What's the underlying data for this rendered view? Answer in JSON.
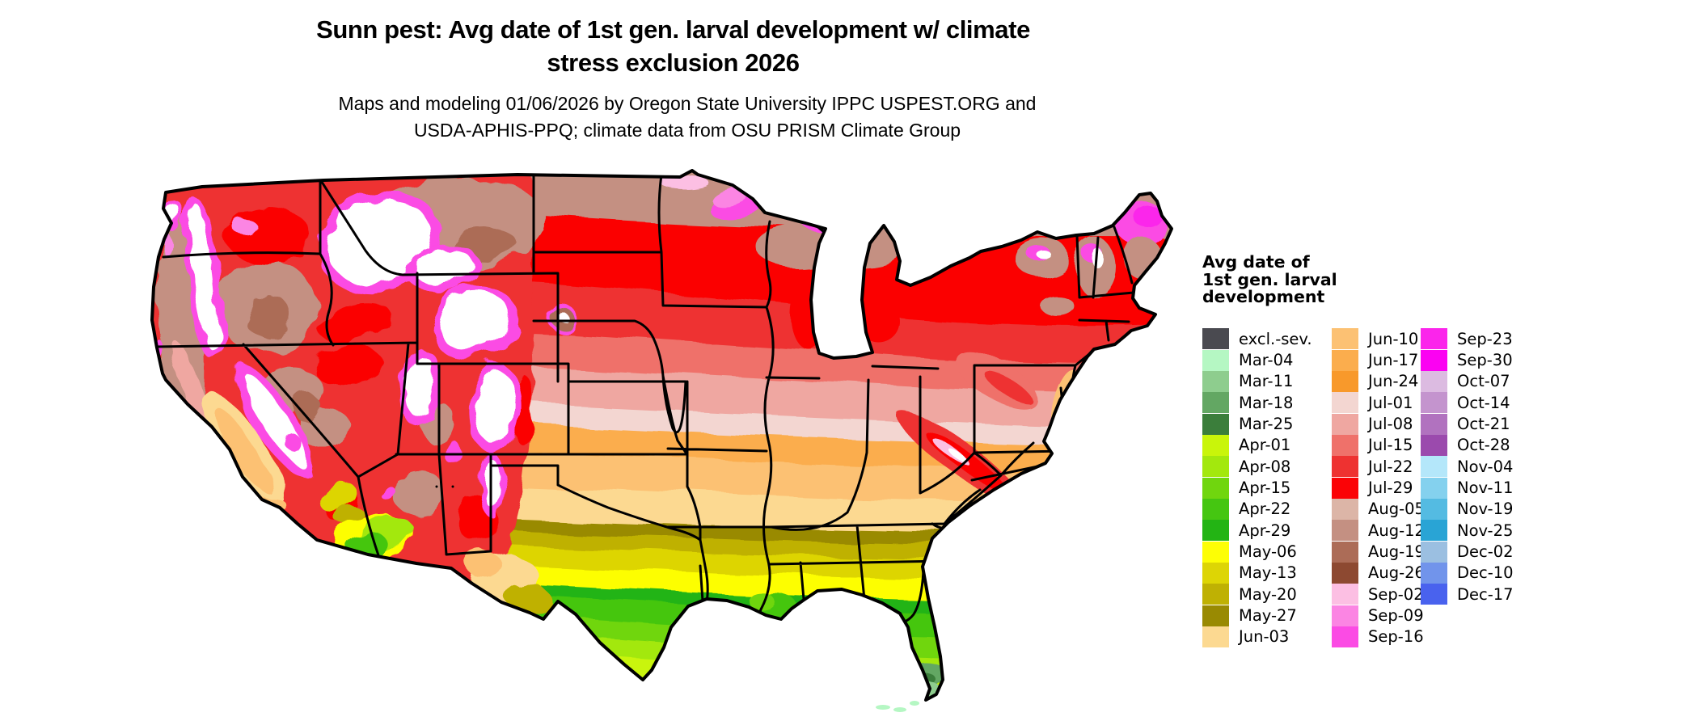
{
  "title": {
    "line1": "Sunn pest: Avg date of 1st gen. larval development w/ climate",
    "line2": "stress exclusion 2026"
  },
  "subtitle": {
    "line1": "Maps and modeling 01/06/2026 by Oregon State University IPPC USPEST.ORG and",
    "line2": "USDA-APHIS-PPQ; climate data from OSU PRISM Climate Group"
  },
  "legend": {
    "title_lines": [
      "Avg date of",
      "1st gen. larval",
      "development"
    ],
    "columns": [
      {
        "entries": [
          {
            "label": "excl.-sev.",
            "color": "#4a4a50"
          },
          {
            "label": "Mar-04",
            "color": "#b5f7c3"
          },
          {
            "label": "Mar-11",
            "color": "#8ecd8e"
          },
          {
            "label": "Mar-18",
            "color": "#63a763"
          },
          {
            "label": "Mar-25",
            "color": "#3b7e3b"
          },
          {
            "label": "Apr-01",
            "color": "#c9f50a"
          },
          {
            "label": "Apr-08",
            "color": "#a3e80d"
          },
          {
            "label": "Apr-15",
            "color": "#70d60e"
          },
          {
            "label": "Apr-22",
            "color": "#45c611"
          },
          {
            "label": "Apr-29",
            "color": "#23b414"
          },
          {
            "label": "May-06",
            "color": "#fdfe05"
          },
          {
            "label": "May-13",
            "color": "#ddd505"
          },
          {
            "label": "May-20",
            "color": "#bfb103"
          },
          {
            "label": "May-27",
            "color": "#998a02"
          },
          {
            "label": "Jun-03",
            "color": "#fcd991"
          }
        ]
      },
      {
        "entries": [
          {
            "label": "Jun-10",
            "color": "#fcc173"
          },
          {
            "label": "Jun-17",
            "color": "#fbad4d"
          },
          {
            "label": "Jun-24",
            "color": "#f8992b"
          },
          {
            "label": "Jul-01",
            "color": "#f3d6d1"
          },
          {
            "label": "Jul-08",
            "color": "#efa7a1"
          },
          {
            "label": "Jul-15",
            "color": "#ef716a"
          },
          {
            "label": "Jul-22",
            "color": "#ee3231"
          },
          {
            "label": "Jul-29",
            "color": "#fb0306"
          },
          {
            "label": "Aug-05",
            "color": "#dcb5a7"
          },
          {
            "label": "Aug-12",
            "color": "#c49082"
          },
          {
            "label": "Aug-19",
            "color": "#ac6c57"
          },
          {
            "label": "Aug-26",
            "color": "#8d4931"
          },
          {
            "label": "Sep-02",
            "color": "#fcbfe3"
          },
          {
            "label": "Sep-09",
            "color": "#fb85e3"
          },
          {
            "label": "Sep-16",
            "color": "#fb4be4"
          }
        ]
      },
      {
        "entries": [
          {
            "label": "Sep-23",
            "color": "#fb25eb"
          },
          {
            "label": "Sep-30",
            "color": "#fb02f2"
          },
          {
            "label": "Oct-07",
            "color": "#dcbbe1"
          },
          {
            "label": "Oct-14",
            "color": "#c494ce"
          },
          {
            "label": "Oct-21",
            "color": "#b172bf"
          },
          {
            "label": "Oct-28",
            "color": "#9b4aad"
          },
          {
            "label": "Nov-04",
            "color": "#b4e7fa"
          },
          {
            "label": "Nov-11",
            "color": "#84d1ee"
          },
          {
            "label": "Nov-19",
            "color": "#54bbe2"
          },
          {
            "label": "Nov-25",
            "color": "#29a4d5"
          },
          {
            "label": "Dec-02",
            "color": "#9bbfe1"
          },
          {
            "label": "Dec-10",
            "color": "#7194eb"
          },
          {
            "label": "Dec-17",
            "color": "#4962ee"
          }
        ]
      }
    ]
  },
  "palette": {
    "white": "#ffffff",
    "exclSev": "#4a4a50",
    "mar04": "#b5f7c3",
    "mar11": "#8ecd8e",
    "mar18": "#63a763",
    "mar25": "#3b7e3b",
    "apr01": "#c9f50a",
    "apr08": "#a3e80d",
    "apr15": "#70d60e",
    "apr22": "#45c611",
    "apr29": "#23b414",
    "may06": "#fdfe05",
    "may13": "#ddd505",
    "may20": "#bfb103",
    "may27": "#998a02",
    "jun03": "#fcd991",
    "jun10": "#fcc173",
    "jun17": "#fbad4d",
    "jun24": "#f8992b",
    "jul01": "#f3d6d1",
    "jul08": "#efa7a1",
    "jul15": "#ef716a",
    "jul22": "#ee3231",
    "jul29": "#fb0306",
    "aug05": "#dcb5a7",
    "aug12": "#c49082",
    "aug19": "#ac6c57",
    "aug26": "#8d4931",
    "sep02": "#fcbfe3",
    "sep09": "#fb85e3",
    "sep16": "#fb4be4",
    "sep23": "#fb25eb",
    "sep30": "#fb02f2",
    "oct07": "#dcbbe1",
    "oct14": "#c494ce",
    "oct21": "#b172bf",
    "oct28": "#9b4aad",
    "nov04": "#b4e7fa",
    "nov11": "#84d1ee",
    "nov19": "#54bbe2",
    "nov25": "#29a4d5",
    "dec02": "#9bbfe1",
    "dec10": "#7194eb",
    "dec17": "#4962ee",
    "border": "#000000"
  }
}
